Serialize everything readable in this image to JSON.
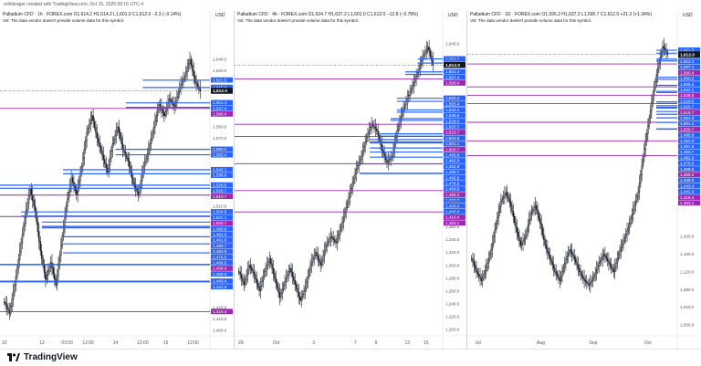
{
  "header": {
    "credit": "erlinbrager created with TradingView.com, Oct 15, 2025 09:16 UTC-4"
  },
  "footer": {
    "brand": "TradingView"
  },
  "colors": {
    "up": "#ffffff",
    "down": "#131722",
    "blue_level": "#2962ff",
    "purple_level": "#9c27b0",
    "last_price": "#131722"
  },
  "chart_data": [
    {
      "type": "candlestick",
      "title": "Palladium CFD · 1h · FOREX.com  O1,614.2  H1,614.2  L1,601.0  C1,612.0  −2.3 (−0.14%)",
      "note": "Vol: The data vendor doesn't provide volume data for this symbol.",
      "currency": "USD",
      "ylim": [
        1395,
        1665
      ],
      "yticks": [
        "1,640.0",
        "1,630.0",
        "1,580.0",
        "1,570.0",
        "1,510.0",
        "1,420.0",
        "1,410.0",
        "1,400.0"
      ],
      "ytick_values": [
        1640,
        1630,
        1580,
        1570,
        1510,
        1420,
        1410,
        1400
      ],
      "xticks": [
        "10",
        "12",
        "03:00",
        "12:00",
        "14",
        "12:00",
        "15",
        "12:00"
      ],
      "xtick_fracs": [
        0.02,
        0.2,
        0.32,
        0.42,
        0.55,
        0.68,
        0.79,
        0.92
      ],
      "last_price": {
        "label": "1,612.0",
        "value": 1612.0
      },
      "levels": [
        {
          "label": "1,621.5",
          "value": 1621.5,
          "color": "blue",
          "start": 0.68
        },
        {
          "label": "1,615.0",
          "value": 1615.0,
          "color": "blue",
          "start": 0.68
        },
        {
          "label": "1,601.4",
          "value": 1601.4,
          "color": "blue",
          "start": 0.6
        },
        {
          "label": "1,597.4",
          "value": 1597.4,
          "color": "blue",
          "start": 0.6
        },
        {
          "label": "1,596.4",
          "value": 1596.4,
          "color": "purple",
          "start": 0.0
        },
        {
          "label": "1,560.2",
          "value": 1560.2,
          "color": "blue",
          "start": 0.55
        },
        {
          "label": "1,555.4",
          "value": 1555.4,
          "color": "blue",
          "start": 0.55
        },
        {
          "label": "1,542.1",
          "value": 1542.1,
          "color": "blue",
          "start": 0.3
        },
        {
          "label": "1,538.6",
          "value": 1538.6,
          "color": "blue",
          "start": 0.3
        },
        {
          "label": "1,528.5",
          "value": 1528.5,
          "color": "blue",
          "start": 0.0
        },
        {
          "label": "1,525.7",
          "value": 1525.7,
          "color": "blue",
          "start": 0.0
        },
        {
          "label": "1,519.7",
          "value": 1519.7,
          "color": "purple",
          "start": 0.0
        },
        {
          "label": "1,504.8",
          "value": 1504.8,
          "color": "blue",
          "start": 0.1
        },
        {
          "label": "1,501.1",
          "value": 1501.1,
          "color": "blue",
          "start": 0.1
        },
        {
          "label": "1,500.7",
          "value": 1500.7,
          "color": "purple",
          "start": 0.0
        },
        {
          "label": "1,495.8",
          "value": 1495.8,
          "color": "blue",
          "start": 0.2
        },
        {
          "label": "1,492.0",
          "value": 1492.0,
          "color": "blue",
          "start": 0.2
        },
        {
          "label": "1,491.9",
          "value": 1491.9,
          "color": "blue",
          "start": 0.2
        },
        {
          "label": "1,490.7",
          "value": 1490.7,
          "color": "blue",
          "start": 0.2
        },
        {
          "label": "1,482.8",
          "value": 1482.8,
          "color": "blue",
          "start": 0.3
        },
        {
          "label": "1,476.5",
          "value": 1476.5,
          "color": "blue",
          "start": 0.3
        },
        {
          "label": "1,468.5",
          "value": 1468.5,
          "color": "blue",
          "start": 0.3
        },
        {
          "label": "1,458.4",
          "value": 1458.4,
          "color": "purple",
          "start": 0.0
        },
        {
          "label": "1,458.0",
          "value": 1458.0,
          "color": "blue",
          "start": 0.0
        },
        {
          "label": "1,443.4",
          "value": 1443.4,
          "color": "blue",
          "start": 0.0
        },
        {
          "label": "1,442.9",
          "value": 1442.9,
          "color": "blue",
          "start": 0.0
        },
        {
          "label": "1,416.4",
          "value": 1416.4,
          "color": "purple",
          "start": 0.0
        }
      ],
      "path": [
        1425,
        1415,
        1440,
        1470,
        1500,
        1525,
        1505,
        1470,
        1445,
        1460,
        1440,
        1475,
        1510,
        1535,
        1520,
        1545,
        1575,
        1590,
        1570,
        1555,
        1540,
        1565,
        1580,
        1560,
        1550,
        1530,
        1520,
        1545,
        1560,
        1580,
        1600,
        1590,
        1605,
        1598,
        1615,
        1625,
        1640,
        1620,
        1612
      ]
    },
    {
      "type": "candlestick",
      "title": "Palladium CFD · 4h · FOREX.com  O1,624.7  H1,637.2  L1,601.0  C1,612.0  −12.8 (−0.78%)",
      "note": "Vol: The data vendor doesn't provide volume data for this symbol.",
      "currency": "USD",
      "ylim": [
        1190,
        1665
      ],
      "yticks": [
        "1,645.0",
        "1,620.0",
        "1,400.0",
        "1,380.0",
        "1,360.0",
        "1,340.0",
        "1,320.0",
        "1,300.0",
        "1,280.0",
        "1,260.0",
        "1,240.0",
        "1,220.0",
        "1,200.0"
      ],
      "ytick_values": [
        1645,
        1620,
        1400,
        1380,
        1360,
        1340,
        1320,
        1300,
        1280,
        1260,
        1240,
        1220,
        1200
      ],
      "xticks": [
        "28",
        "Oct",
        "3",
        "7",
        "9",
        "13",
        "15"
      ],
      "xtick_fracs": [
        0.03,
        0.2,
        0.38,
        0.58,
        0.68,
        0.83,
        0.92
      ],
      "last_price": {
        "label": "1,612.0",
        "value": 1612.0
      },
      "levels": [
        {
          "label": "1,621.5",
          "value": 1621.5,
          "color": "blue",
          "start": 0.88
        },
        {
          "label": "1,615.0",
          "value": 1615.0,
          "color": "blue",
          "start": 0.88
        },
        {
          "label": "1,601.4",
          "value": 1601.4,
          "color": "blue",
          "start": 0.82
        },
        {
          "label": "1,597.4",
          "value": 1597.4,
          "color": "blue",
          "start": 0.82
        },
        {
          "label": "1,590.4",
          "value": 1590.4,
          "color": "purple",
          "start": 0.0
        },
        {
          "label": "1,560.2",
          "value": 1560.2,
          "color": "blue",
          "start": 0.78
        },
        {
          "label": "1,555.4",
          "value": 1555.4,
          "color": "blue",
          "start": 0.78
        },
        {
          "label": "1,542.1",
          "value": 1542.1,
          "color": "blue",
          "start": 0.78
        },
        {
          "label": "1,538.6",
          "value": 1538.6,
          "color": "blue",
          "start": 0.78
        },
        {
          "label": "1,528.5",
          "value": 1528.5,
          "color": "blue",
          "start": 0.75
        },
        {
          "label": "1,525.7",
          "value": 1525.7,
          "color": "blue",
          "start": 0.75
        },
        {
          "label": "1,519.7",
          "value": 1519.7,
          "color": "purple",
          "start": 0.0
        },
        {
          "label": "1,504.8",
          "value": 1504.8,
          "color": "blue",
          "start": 0.7
        },
        {
          "label": "1,501.1",
          "value": 1501.1,
          "color": "blue",
          "start": 0.7
        },
        {
          "label": "1,500.7",
          "value": 1500.7,
          "color": "purple",
          "start": 0.0
        },
        {
          "label": "1,495.8",
          "value": 1495.8,
          "color": "blue",
          "start": 0.65
        },
        {
          "label": "1,492.0",
          "value": 1492.0,
          "color": "blue",
          "start": 0.65
        },
        {
          "label": "1,491.9",
          "value": 1491.9,
          "color": "blue",
          "start": 0.65
        },
        {
          "label": "1,490.7",
          "value": 1490.7,
          "color": "blue",
          "start": 0.65
        },
        {
          "label": "1,482.8",
          "value": 1482.8,
          "color": "blue",
          "start": 0.65
        },
        {
          "label": "1,476.5",
          "value": 1476.5,
          "color": "blue",
          "start": 0.65
        },
        {
          "label": "1,468.5",
          "value": 1468.5,
          "color": "blue",
          "start": 0.65
        },
        {
          "label": "1,458.4",
          "value": 1458.4,
          "color": "purple",
          "start": 0.0
        },
        {
          "label": "1,458.0",
          "value": 1458.0,
          "color": "blue",
          "start": 0.6
        },
        {
          "label": "1,443.4",
          "value": 1443.4,
          "color": "blue",
          "start": 0.6
        },
        {
          "label": "1,442.9",
          "value": 1442.9,
          "color": "blue",
          "start": 0.6
        },
        {
          "label": "1,416.4",
          "value": 1416.4,
          "color": "purple",
          "start": 0.0
        },
        {
          "label": "1,383.1",
          "value": 1383.1,
          "color": "purple",
          "start": 0.0
        }
      ],
      "path": [
        1290,
        1270,
        1300,
        1285,
        1260,
        1290,
        1310,
        1280,
        1250,
        1275,
        1295,
        1270,
        1245,
        1265,
        1300,
        1320,
        1300,
        1330,
        1345,
        1335,
        1360,
        1390,
        1420,
        1450,
        1470,
        1500,
        1520,
        1510,
        1480,
        1460,
        1470,
        1510,
        1540,
        1560,
        1580,
        1600,
        1625,
        1640,
        1612
      ]
    },
    {
      "type": "candlestick",
      "title": "Palladium CFD · 1D · FOREX.com  O1,595.2  H1,637.2  L1,590.7  C1,612.0  +21.3 (+1.34%)",
      "note": "Vol: The data vendor doesn't provide volume data for this symbol.",
      "currency": "USD",
      "ylim": [
        975,
        1665
      ],
      "yticks": [
        "1,200.0",
        "1,160.0",
        "1,120.0",
        "1,080.0",
        "1,040.0",
        "1,000.0"
      ],
      "ytick_values": [
        1200,
        1160,
        1120,
        1080,
        1040,
        1000
      ],
      "xticks": [
        "Jul",
        "Aug",
        "Sep",
        "Oct"
      ],
      "xtick_fracs": [
        0.05,
        0.35,
        0.6,
        0.86
      ],
      "last_price": {
        "label": "1,612.0",
        "value": 1612.0
      },
      "levels": [
        {
          "label": "1,621.5",
          "value": 1621.5,
          "color": "blue",
          "start": 0.9
        },
        {
          "label": "1,615.0",
          "value": 1615.0,
          "color": "blue",
          "start": 0.9
        },
        {
          "label": "1,601.4",
          "value": 1601.4,
          "color": "blue",
          "start": 0.9
        },
        {
          "label": "1,597.4",
          "value": 1597.4,
          "color": "blue",
          "start": 0.9
        },
        {
          "label": "1,590.4",
          "value": 1590.4,
          "color": "purple",
          "start": 0.0
        },
        {
          "label": "1,560.2",
          "value": 1560.2,
          "color": "blue",
          "start": 0.9
        },
        {
          "label": "1,555.4",
          "value": 1555.4,
          "color": "blue",
          "start": 0.9
        },
        {
          "label": "1,542.1",
          "value": 1542.1,
          "color": "blue",
          "start": 0.9
        },
        {
          "label": "1,538.6",
          "value": 1538.6,
          "color": "purple",
          "start": 0.0
        },
        {
          "label": "1,528.5",
          "value": 1528.5,
          "color": "blue",
          "start": 0.9
        },
        {
          "label": "1,525.7",
          "value": 1525.7,
          "color": "blue",
          "start": 0.9
        },
        {
          "label": "1,519.7",
          "value": 1519.7,
          "color": "purple",
          "start": 0.0
        },
        {
          "label": "1,504.8",
          "value": 1504.8,
          "color": "blue",
          "start": 0.9
        },
        {
          "label": "1,501.1",
          "value": 1501.1,
          "color": "blue",
          "start": 0.9
        },
        {
          "label": "1,500.7",
          "value": 1500.7,
          "color": "purple",
          "start": 0.0
        },
        {
          "label": "1,495.8",
          "value": 1495.8,
          "color": "blue",
          "start": 0.9
        },
        {
          "label": "1,492.0",
          "value": 1492.0,
          "color": "blue",
          "start": 0.9
        },
        {
          "label": "1,491.9",
          "value": 1491.9,
          "color": "blue",
          "start": 0.9
        },
        {
          "label": "1,490.7",
          "value": 1490.7,
          "color": "blue",
          "start": 0.9
        },
        {
          "label": "1,482.8",
          "value": 1482.8,
          "color": "blue",
          "start": 0.9
        },
        {
          "label": "1,476.5",
          "value": 1476.5,
          "color": "blue",
          "start": 0.9
        },
        {
          "label": "1,468.5",
          "value": 1468.5,
          "color": "blue",
          "start": 0.9
        },
        {
          "label": "1,458.4",
          "value": 1458.4,
          "color": "purple",
          "start": 0.0
        },
        {
          "label": "1,458.0",
          "value": 1458.0,
          "color": "blue",
          "start": 0.9
        },
        {
          "label": "1,443.4",
          "value": 1443.4,
          "color": "blue",
          "start": 0.9
        },
        {
          "label": "1,442.9",
          "value": 1442.9,
          "color": "blue",
          "start": 0.9
        },
        {
          "label": "1,416.4",
          "value": 1416.4,
          "color": "purple",
          "start": 0.0
        },
        {
          "label": "1,383.1",
          "value": 1383.1,
          "color": "purple",
          "start": 0.0
        }
      ],
      "path": [
        1150,
        1120,
        1100,
        1130,
        1170,
        1230,
        1280,
        1300,
        1270,
        1220,
        1180,
        1200,
        1250,
        1270,
        1230,
        1180,
        1150,
        1120,
        1100,
        1140,
        1170,
        1150,
        1120,
        1100,
        1090,
        1110,
        1140,
        1160,
        1140,
        1120,
        1160,
        1190,
        1220,
        1260,
        1300,
        1380,
        1450,
        1520,
        1580,
        1630,
        1612
      ]
    }
  ]
}
